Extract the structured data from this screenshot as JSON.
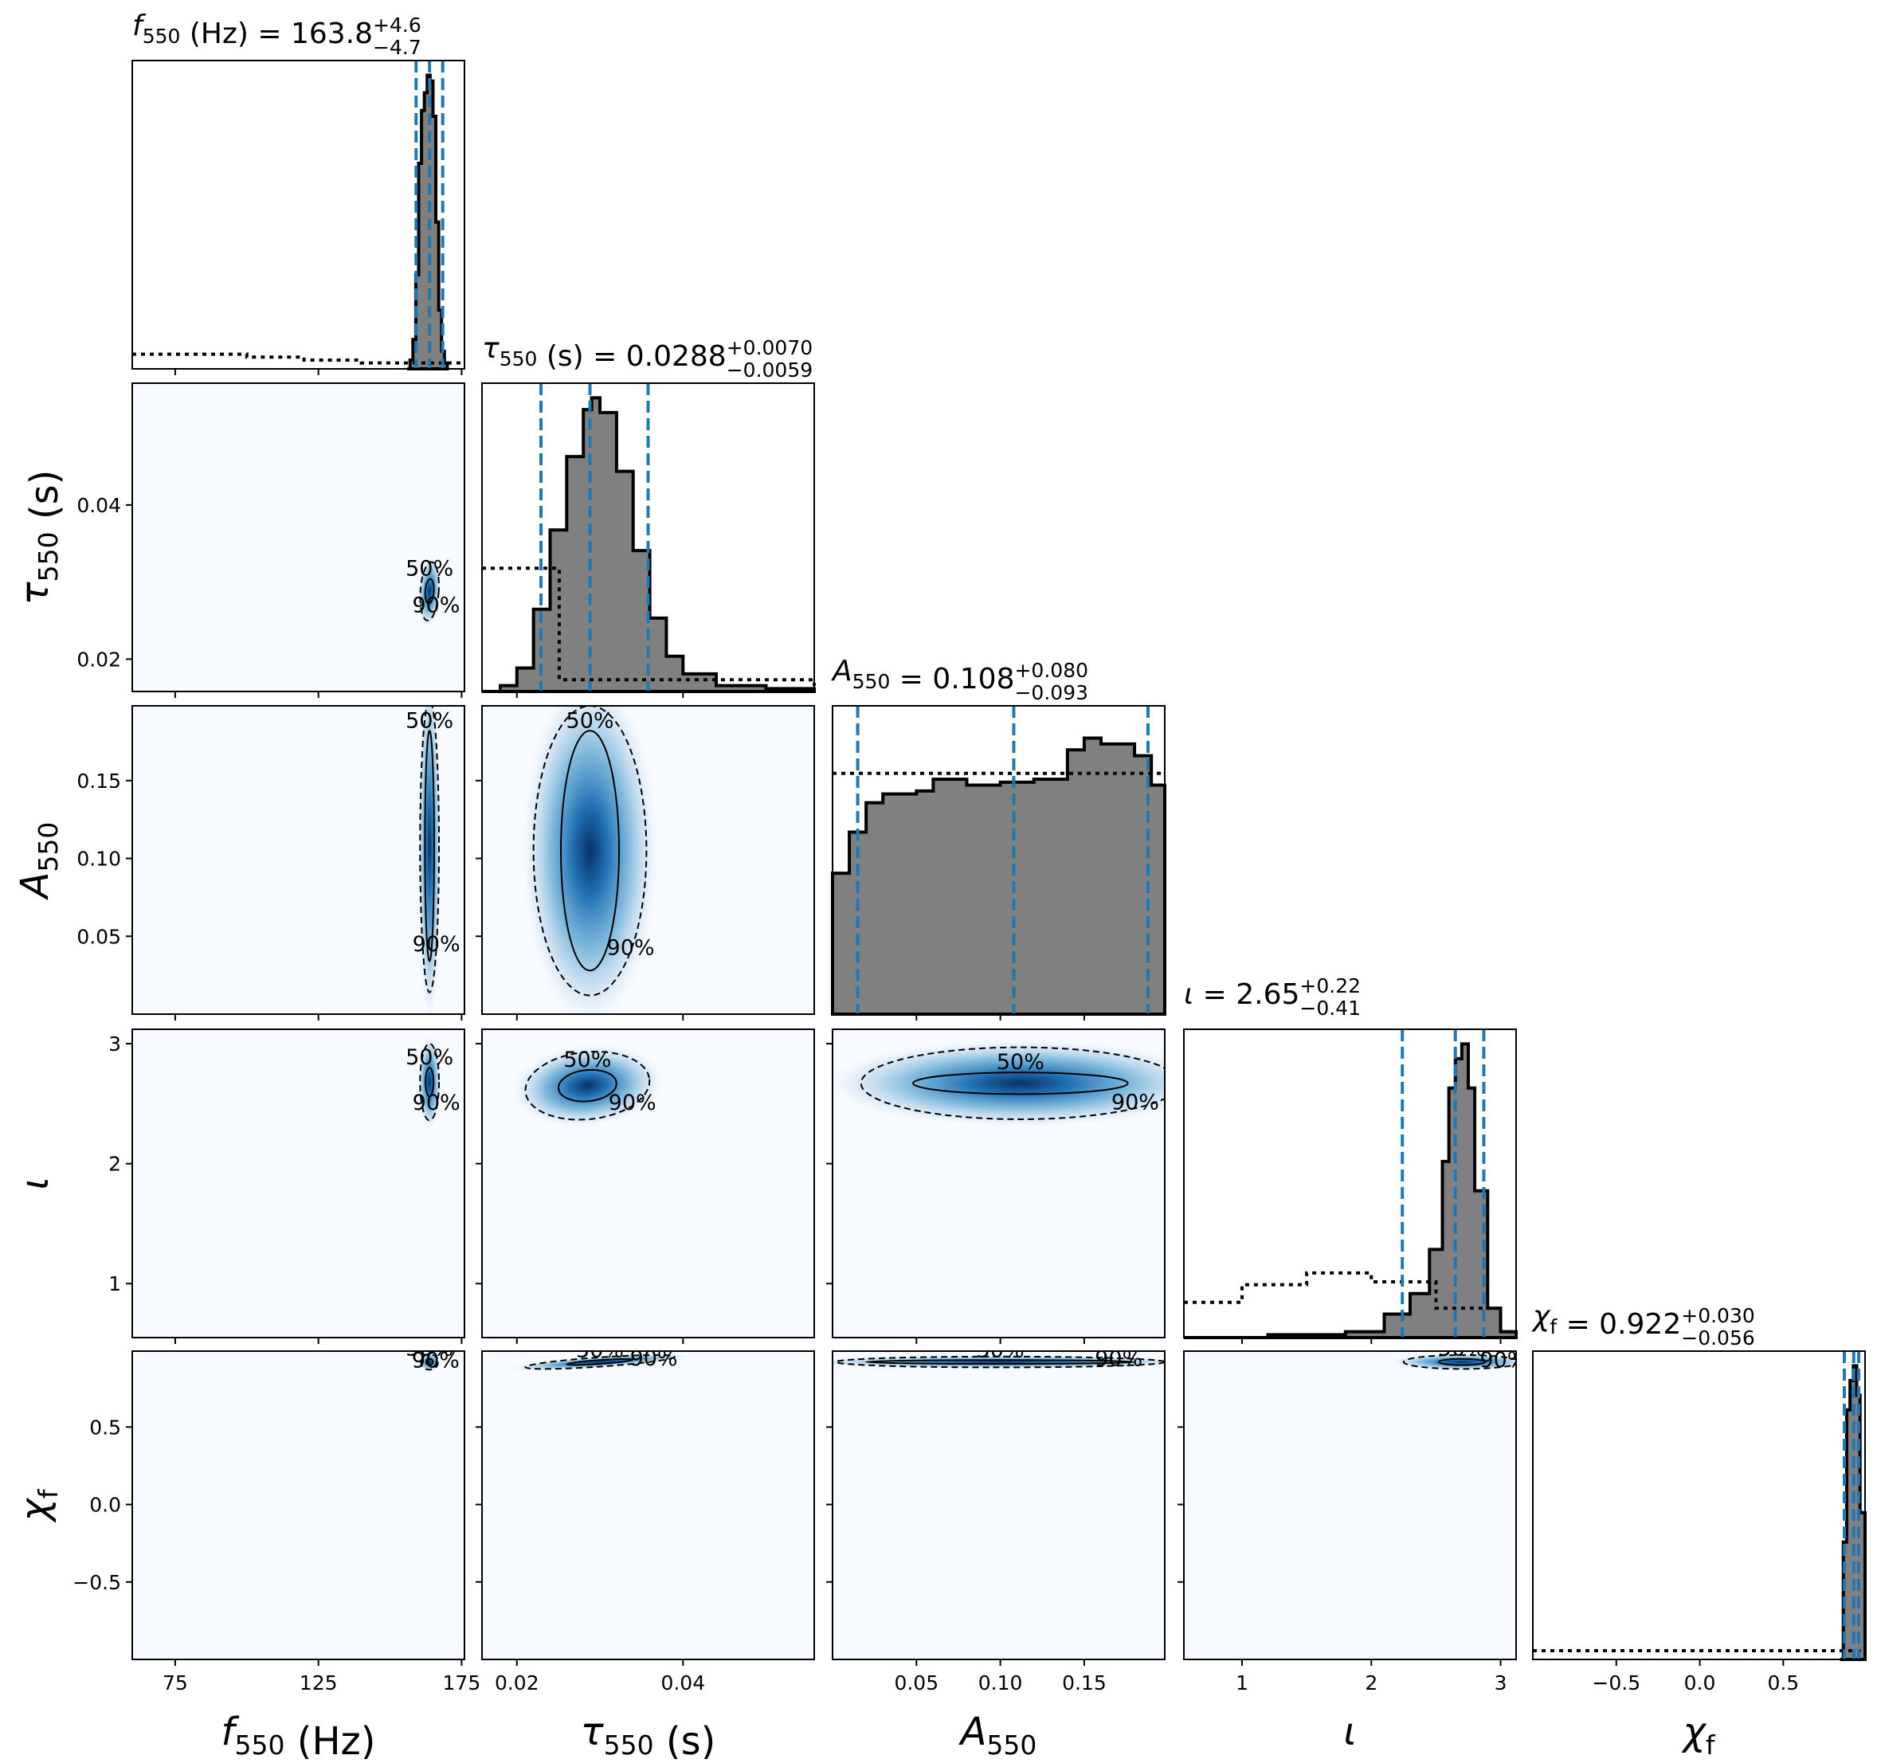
{
  "chart_data": {
    "type": "corner",
    "parameters": [
      {
        "key": "f",
        "axis_label": "f",
        "axis_label_sub": "550",
        "axis_label_unit": " (Hz)",
        "range": [
          60,
          176
        ],
        "ticks": [
          75,
          125,
          175
        ],
        "tick_labels": [
          "75",
          "125",
          "175"
        ],
        "title": {
          "prefix": "f",
          "prefix_sub": "550",
          "unit": " (Hz)",
          "median": "163.8",
          "plus": "+4.6",
          "minus": "−4.7"
        },
        "median": 163.8,
        "lower": 159.1,
        "upper": 168.4
      },
      {
        "key": "tau",
        "axis_label": "τ",
        "axis_label_sub": "550",
        "axis_label_unit": " (s)",
        "range": [
          0.0158,
          0.0558
        ],
        "ticks": [
          0.02,
          0.04
        ],
        "tick_labels": [
          "0.02",
          "0.04"
        ],
        "title": {
          "prefix": "τ",
          "prefix_sub": "550",
          "unit": " (s)",
          "median": "0.0288",
          "plus": "+0.0070",
          "minus": "−0.0059"
        },
        "median": 0.0288,
        "lower": 0.0229,
        "upper": 0.0358
      },
      {
        "key": "A",
        "axis_label": "A",
        "axis_label_sub": "550",
        "axis_label_unit": "",
        "range": [
          0.0,
          0.198
        ],
        "ticks": [
          0.05,
          0.1,
          0.15
        ],
        "tick_labels": [
          "0.05",
          "0.10",
          "0.15"
        ],
        "title": {
          "prefix": "A",
          "prefix_sub": "550",
          "unit": "",
          "median": "0.108",
          "plus": "+0.080",
          "minus": "−0.093"
        },
        "median": 0.108,
        "lower": 0.015,
        "upper": 0.188
      },
      {
        "key": "iota",
        "axis_label": "ι",
        "axis_label_sub": "",
        "axis_label_unit": "",
        "range": [
          0.55,
          3.12
        ],
        "ticks": [
          1,
          2,
          3
        ],
        "tick_labels": [
          "1",
          "2",
          "3"
        ],
        "title": {
          "prefix": "ι",
          "prefix_sub": "",
          "unit": "",
          "median": "2.65",
          "plus": "+0.22",
          "minus": "−0.41"
        },
        "median": 2.65,
        "lower": 2.24,
        "upper": 2.87
      },
      {
        "key": "chi",
        "axis_label": "χ",
        "axis_label_sub": "f",
        "axis_label_unit": "",
        "range": [
          -1.0,
          0.99
        ],
        "ticks": [
          -0.5,
          0.0,
          0.5
        ],
        "tick_labels": [
          "−0.5",
          "0.0",
          "0.5"
        ],
        "title": {
          "prefix": "χ",
          "prefix_sub": "f",
          "unit": "",
          "median": "0.922",
          "plus": "+0.030",
          "minus": "−0.056"
        },
        "median": 0.922,
        "lower": 0.866,
        "upper": 0.952
      }
    ],
    "histograms": [
      {
        "param": "f",
        "posterior": [
          [
            156,
            0
          ],
          [
            157,
            0.03
          ],
          [
            158,
            0.1
          ],
          [
            159,
            0.32
          ],
          [
            160,
            0.7
          ],
          [
            161,
            0.88
          ],
          [
            162,
            0.94
          ],
          [
            163,
            1.0
          ],
          [
            164,
            0.98
          ],
          [
            165,
            0.86
          ],
          [
            166,
            0.5
          ],
          [
            167,
            0.2
          ],
          [
            168,
            0.06
          ],
          [
            169,
            0.02
          ],
          [
            170,
            0
          ]
        ],
        "prior": [
          [
            60,
            0.05
          ],
          [
            80,
            0.05
          ],
          [
            100,
            0.04
          ],
          [
            120,
            0.03
          ],
          [
            140,
            0.02
          ],
          [
            160,
            0.02
          ],
          [
            176,
            0.02
          ]
        ]
      },
      {
        "param": "tau",
        "posterior": [
          [
            0.0158,
            0
          ],
          [
            0.018,
            0.02
          ],
          [
            0.02,
            0.08
          ],
          [
            0.022,
            0.28
          ],
          [
            0.024,
            0.55
          ],
          [
            0.026,
            0.8
          ],
          [
            0.028,
            0.96
          ],
          [
            0.029,
            1.0
          ],
          [
            0.03,
            0.95
          ],
          [
            0.032,
            0.75
          ],
          [
            0.034,
            0.48
          ],
          [
            0.036,
            0.25
          ],
          [
            0.038,
            0.12
          ],
          [
            0.04,
            0.06
          ],
          [
            0.044,
            0.02
          ],
          [
            0.05,
            0.01
          ],
          [
            0.0558,
            0.01
          ]
        ],
        "prior": [
          [
            0.0158,
            0.42
          ],
          [
            0.025,
            0.42
          ],
          [
            0.0251,
            0.04
          ],
          [
            0.0558,
            0.02
          ]
        ]
      },
      {
        "param": "A",
        "posterior": [
          [
            0.0,
            0.48
          ],
          [
            0.01,
            0.62
          ],
          [
            0.02,
            0.72
          ],
          [
            0.03,
            0.75
          ],
          [
            0.05,
            0.76
          ],
          [
            0.06,
            0.8
          ],
          [
            0.08,
            0.78
          ],
          [
            0.1,
            0.79
          ],
          [
            0.12,
            0.8
          ],
          [
            0.14,
            0.9
          ],
          [
            0.15,
            0.94
          ],
          [
            0.16,
            0.92
          ],
          [
            0.18,
            0.88
          ],
          [
            0.19,
            0.78
          ],
          [
            0.198,
            0.64
          ]
        ],
        "prior": [
          [
            0.0,
            0.82
          ],
          [
            0.04,
            0.82
          ],
          [
            0.08,
            0.82
          ],
          [
            0.12,
            0.82
          ],
          [
            0.16,
            0.82
          ],
          [
            0.198,
            0.82
          ]
        ]
      },
      {
        "param": "iota",
        "posterior": [
          [
            0.55,
            0
          ],
          [
            1.2,
            0.01
          ],
          [
            1.8,
            0.02
          ],
          [
            2.1,
            0.08
          ],
          [
            2.3,
            0.15
          ],
          [
            2.45,
            0.3
          ],
          [
            2.55,
            0.6
          ],
          [
            2.6,
            0.85
          ],
          [
            2.65,
            0.95
          ],
          [
            2.7,
            1.0
          ],
          [
            2.75,
            0.85
          ],
          [
            2.8,
            0.5
          ],
          [
            2.9,
            0.1
          ],
          [
            3.0,
            0.02
          ],
          [
            3.12,
            0
          ]
        ],
        "prior": [
          [
            0.55,
            0.12
          ],
          [
            1.0,
            0.18
          ],
          [
            1.5,
            0.22
          ],
          [
            2.0,
            0.19
          ],
          [
            2.5,
            0.1
          ],
          [
            3.0,
            0.02
          ],
          [
            3.12,
            0.01
          ]
        ]
      },
      {
        "param": "chi",
        "posterior": [
          [
            0.84,
            0
          ],
          [
            0.86,
            0.4
          ],
          [
            0.88,
            0.85
          ],
          [
            0.9,
            0.95
          ],
          [
            0.92,
            1.0
          ],
          [
            0.94,
            0.9
          ],
          [
            0.96,
            0.5
          ],
          [
            0.99,
            0
          ]
        ],
        "prior": [
          [
            -1.0,
            0.03
          ],
          [
            -0.5,
            0.03
          ],
          [
            0.0,
            0.03
          ],
          [
            0.5,
            0.03
          ],
          [
            0.8,
            0.03
          ],
          [
            0.99,
            0.03
          ]
        ]
      }
    ],
    "contours": [
      {
        "x": "f",
        "y": "tau",
        "center": [
          163.8,
          0.0288
        ],
        "sigma50": [
          1.5,
          0.0016
        ],
        "sigma90": [
          3.2,
          0.0038
        ],
        "rot_deg": 4
      },
      {
        "x": "f",
        "y": "A",
        "center": [
          163.8,
          0.108
        ],
        "sigma50": [
          1.6,
          0.074
        ],
        "sigma90": [
          3.3,
          0.094
        ],
        "rot_deg": 0
      },
      {
        "x": "f",
        "y": "iota",
        "center": [
          163.8,
          2.68
        ],
        "sigma50": [
          1.4,
          0.12
        ],
        "sigma90": [
          3.3,
          0.32
        ],
        "rot_deg": 0
      },
      {
        "x": "f",
        "y": "chi",
        "center": [
          163.8,
          0.92
        ],
        "sigma50": [
          1.2,
          0.02
        ],
        "sigma90": [
          3.0,
          0.05
        ],
        "rot_deg": 0
      },
      {
        "x": "tau",
        "y": "A",
        "center": [
          0.0288,
          0.105
        ],
        "sigma50": [
          0.0035,
          0.077
        ],
        "sigma90": [
          0.0068,
          0.093
        ],
        "rot_deg": 0
      },
      {
        "x": "tau",
        "y": "iota",
        "center": [
          0.0285,
          2.65
        ],
        "sigma50": [
          0.0035,
          0.13
        ],
        "sigma90": [
          0.0075,
          0.28
        ],
        "rot_deg": -6
      },
      {
        "x": "tau",
        "y": "chi",
        "center": [
          0.03,
          0.92
        ],
        "sigma50": [
          0.004,
          0.012
        ],
        "sigma90": [
          0.009,
          0.03
        ],
        "rot_deg": -4
      },
      {
        "x": "A",
        "y": "iota",
        "center": [
          0.112,
          2.67
        ],
        "sigma50": [
          0.064,
          0.09
        ],
        "sigma90": [
          0.095,
          0.3
        ],
        "rot_deg": 0
      },
      {
        "x": "A",
        "y": "chi",
        "center": [
          0.1,
          0.92
        ],
        "sigma50": [
          0.08,
          0.012
        ],
        "sigma90": [
          0.098,
          0.035
        ],
        "rot_deg": 0
      },
      {
        "x": "iota",
        "y": "chi",
        "center": [
          2.7,
          0.92
        ],
        "sigma50": [
          0.18,
          0.02
        ],
        "sigma90": [
          0.45,
          0.045
        ],
        "rot_deg": 0
      }
    ],
    "contour_labels": [
      "50%",
      "90%"
    ],
    "colors": {
      "posterior_fill": "#808080",
      "quantile_line": "#1f77b4",
      "density_low": "#f7fbff",
      "density_high": "#08306b"
    }
  }
}
